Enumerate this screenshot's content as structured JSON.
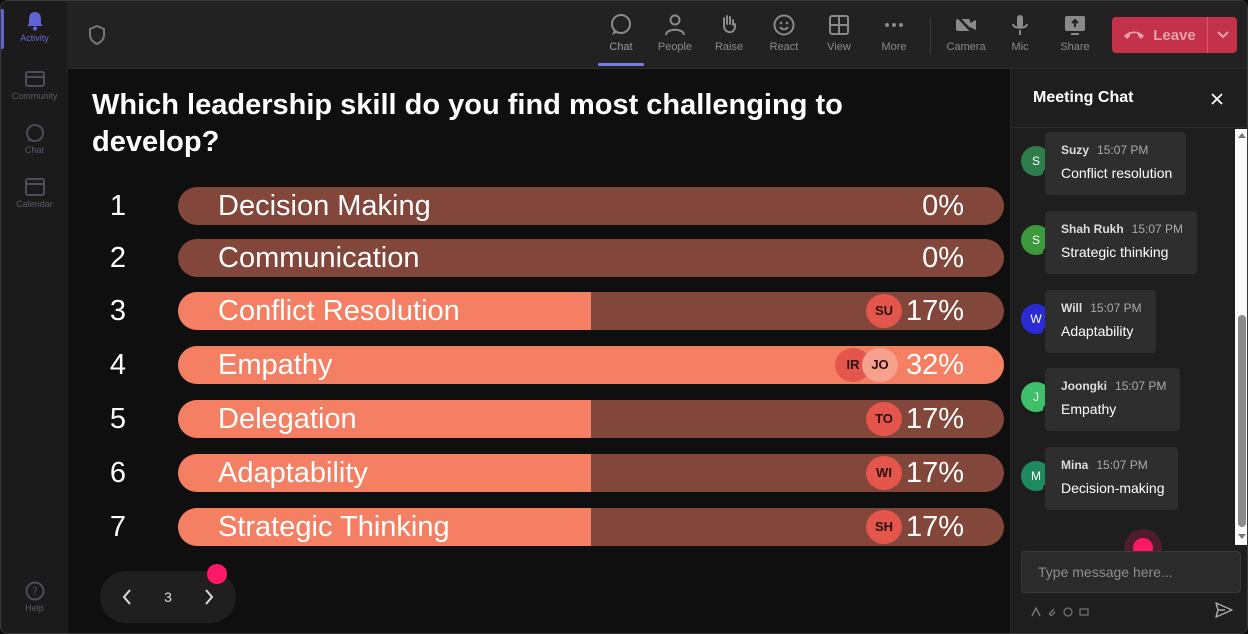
{
  "rail": {
    "items": [
      {
        "label": "Activity",
        "icon": "bell-icon",
        "active": true
      },
      {
        "label": "Community",
        "icon": "community-icon",
        "active": false
      },
      {
        "label": "Chat",
        "icon": "chat-icon",
        "active": false
      },
      {
        "label": "Calendar",
        "icon": "calendar-icon",
        "active": false
      }
    ],
    "help_label": "Help"
  },
  "toolbar": {
    "chat_label": "Chat",
    "people_label": "People",
    "raise_label": "Raise",
    "react_label": "React",
    "view_label": "View",
    "more_label": "More",
    "camera_label": "Camera",
    "mic_label": "Mic",
    "share_label": "Share",
    "leave_label": "Leave"
  },
  "poll": {
    "question": "Which leadership skill do you find most challenging to develop?",
    "options": [
      {
        "num": "1",
        "label": "Decision Making",
        "pct": "0%",
        "fill": 0,
        "voters": []
      },
      {
        "num": "2",
        "label": "Communication",
        "pct": "0%",
        "fill": 0,
        "voters": []
      },
      {
        "num": "3",
        "label": "Conflict Resolution",
        "pct": "17%",
        "fill": 0.5,
        "voters": [
          "SU"
        ]
      },
      {
        "num": "4",
        "label": "Empathy",
        "pct": "32%",
        "fill": 1.0,
        "voters": [
          "IR",
          "JO"
        ]
      },
      {
        "num": "5",
        "label": "Delegation",
        "pct": "17%",
        "fill": 0.5,
        "voters": [
          "TO"
        ]
      },
      {
        "num": "6",
        "label": "Adaptability",
        "pct": "17%",
        "fill": 0.5,
        "voters": [
          "WI"
        ]
      },
      {
        "num": "7",
        "label": "Strategic Thinking",
        "pct": "17%",
        "fill": 0.5,
        "voters": [
          "SH"
        ]
      }
    ],
    "page": "3"
  },
  "chat": {
    "title": "Meeting Chat",
    "messages": [
      {
        "initial": "S",
        "sender": "Suzy",
        "time": "15:07 PM",
        "text": "Conflict resolution",
        "avatar_color": "#2e7d4a"
      },
      {
        "initial": "S",
        "sender": "Shah Rukh",
        "time": "15:07 PM",
        "text": "Strategic thinking",
        "avatar_color": "#3c9a3c"
      },
      {
        "initial": "W",
        "sender": "Will",
        "time": "15:07 PM",
        "text": "Adaptability",
        "avatar_color": "#2b2bd6"
      },
      {
        "initial": "J",
        "sender": "Joongki",
        "time": "15:07 PM",
        "text": "Empathy",
        "avatar_color": "#3fbf6a"
      },
      {
        "initial": "M",
        "sender": "Mina",
        "time": "15:07 PM",
        "text": "Decision-making",
        "avatar_color": "#1f8a5e"
      }
    ],
    "input_placeholder": "Type message here..."
  },
  "colors": {
    "accent": "#6264d6",
    "leave": "#c4314b",
    "bar_track": "#83463a",
    "bar_fill": "#f47f63",
    "pointer": "#ff1867"
  }
}
